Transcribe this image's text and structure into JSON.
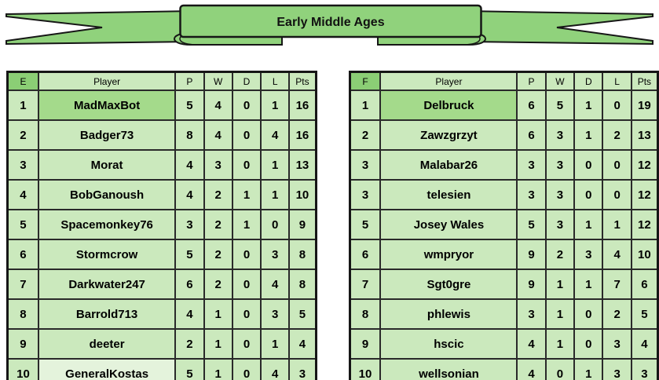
{
  "banner": {
    "title": "Early Middle Ages"
  },
  "colors": {
    "ribbon_green": "#90d27c",
    "group_header_green": "#8bce75",
    "cell_green": "#cbe9bd",
    "top_highlight_green": "#a4da8b",
    "last_highlight_green": "#e4f3dc",
    "border_dark": "#1c1c1c"
  },
  "tables": [
    {
      "group": "E",
      "headers": [
        "E",
        "Player",
        "P",
        "W",
        "D",
        "L",
        "Pts"
      ],
      "rows": [
        {
          "rank": "1",
          "player": "MadMaxBot",
          "p": "5",
          "w": "4",
          "d": "0",
          "l": "1",
          "pts": "16",
          "highlight": "top"
        },
        {
          "rank": "2",
          "player": "Badger73",
          "p": "8",
          "w": "4",
          "d": "0",
          "l": "4",
          "pts": "16",
          "highlight": ""
        },
        {
          "rank": "3",
          "player": "Morat",
          "p": "4",
          "w": "3",
          "d": "0",
          "l": "1",
          "pts": "13",
          "highlight": ""
        },
        {
          "rank": "4",
          "player": "BobGanoush",
          "p": "4",
          "w": "2",
          "d": "1",
          "l": "1",
          "pts": "10",
          "highlight": ""
        },
        {
          "rank": "5",
          "player": "Spacemonkey76",
          "p": "3",
          "w": "2",
          "d": "1",
          "l": "0",
          "pts": "9",
          "highlight": ""
        },
        {
          "rank": "6",
          "player": "Stormcrow",
          "p": "5",
          "w": "2",
          "d": "0",
          "l": "3",
          "pts": "8",
          "highlight": ""
        },
        {
          "rank": "7",
          "player": "Darkwater247",
          "p": "6",
          "w": "2",
          "d": "0",
          "l": "4",
          "pts": "8",
          "highlight": ""
        },
        {
          "rank": "8",
          "player": "Barrold713",
          "p": "4",
          "w": "1",
          "d": "0",
          "l": "3",
          "pts": "5",
          "highlight": ""
        },
        {
          "rank": "9",
          "player": "deeter",
          "p": "2",
          "w": "1",
          "d": "0",
          "l": "1",
          "pts": "4",
          "highlight": ""
        },
        {
          "rank": "10",
          "player": "GeneralKostas",
          "p": "5",
          "w": "1",
          "d": "0",
          "l": "4",
          "pts": "3",
          "highlight": "light"
        }
      ]
    },
    {
      "group": "F",
      "headers": [
        "F",
        "Player",
        "P",
        "W",
        "D",
        "L",
        "Pts"
      ],
      "rows": [
        {
          "rank": "1",
          "player": "Delbruck",
          "p": "6",
          "w": "5",
          "d": "1",
          "l": "0",
          "pts": "19",
          "highlight": "top"
        },
        {
          "rank": "2",
          "player": "Zawzgrzyt",
          "p": "6",
          "w": "3",
          "d": "1",
          "l": "2",
          "pts": "13",
          "highlight": ""
        },
        {
          "rank": "3",
          "player": "Malabar26",
          "p": "3",
          "w": "3",
          "d": "0",
          "l": "0",
          "pts": "12",
          "highlight": ""
        },
        {
          "rank": "3",
          "player": "telesien",
          "p": "3",
          "w": "3",
          "d": "0",
          "l": "0",
          "pts": "12",
          "highlight": ""
        },
        {
          "rank": "5",
          "player": "Josey Wales",
          "p": "5",
          "w": "3",
          "d": "1",
          "l": "1",
          "pts": "12",
          "highlight": ""
        },
        {
          "rank": "6",
          "player": "wmpryor",
          "p": "9",
          "w": "2",
          "d": "3",
          "l": "4",
          "pts": "10",
          "highlight": ""
        },
        {
          "rank": "7",
          "player": "Sgt0gre",
          "p": "9",
          "w": "1",
          "d": "1",
          "l": "7",
          "pts": "6",
          "highlight": ""
        },
        {
          "rank": "8",
          "player": "phlewis",
          "p": "3",
          "w": "1",
          "d": "0",
          "l": "2",
          "pts": "5",
          "highlight": ""
        },
        {
          "rank": "9",
          "player": "hscic",
          "p": "4",
          "w": "1",
          "d": "0",
          "l": "3",
          "pts": "4",
          "highlight": ""
        },
        {
          "rank": "10",
          "player": "wellsonian",
          "p": "4",
          "w": "0",
          "d": "1",
          "l": "3",
          "pts": "3",
          "highlight": ""
        }
      ]
    }
  ]
}
